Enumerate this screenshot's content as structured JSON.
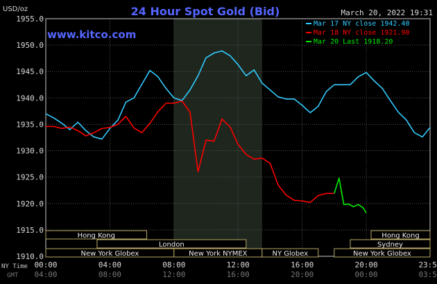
{
  "chart_data": {
    "type": "line",
    "title": "24 Hour Spot Gold (Bid)",
    "currency_label": "USD/oz",
    "timestamp": "March 20, 2022 19:31",
    "watermark": "www.kitco.com",
    "ylim": [
      1910,
      1955
    ],
    "yticks": [
      "1955.0",
      "1950.0",
      "1945.0",
      "1940.0",
      "1935.0",
      "1930.0",
      "1925.0",
      "1920.0",
      "1915.0",
      "1910.0"
    ],
    "x_hours": [
      0,
      4,
      8,
      12,
      16,
      20,
      23.98
    ],
    "xticks_ny": [
      "00:00",
      "04:00",
      "08:00",
      "12:00",
      "16:00",
      "20:00",
      "23:59"
    ],
    "xticks_gmt": [
      "04:00",
      "08:00",
      "12:00",
      "16:00",
      "20:00",
      "00:00",
      "03:59"
    ],
    "x_row_label_ny": "NY Time",
    "x_row_label_gmt": "GMT",
    "highlight_hours": [
      8,
      13.5
    ],
    "sessions": [
      {
        "label": "Hong Kong",
        "start": -2,
        "end": 6.3,
        "row": 0
      },
      {
        "label": "London",
        "start": 3.2,
        "end": 12.5,
        "row": 1
      },
      {
        "label": "New York Globex",
        "start": 0,
        "end": 8,
        "row": 2
      },
      {
        "label": "New York NYMEX",
        "start": 8,
        "end": 13.5,
        "row": 2
      },
      {
        "label": "NY Globex",
        "start": 13.5,
        "end": 17,
        "row": 2
      },
      {
        "label": "Hong Kong",
        "start": 20.3,
        "end": 26,
        "row": 0
      },
      {
        "label": "Sydney",
        "start": 19,
        "end": 26,
        "row": 1
      },
      {
        "label": "New York Globex",
        "start": 18,
        "end": 26,
        "row": 2
      }
    ],
    "series": [
      {
        "name": "Mar 17 NY close 1942.40",
        "color": "#33CCFF",
        "x": [
          0,
          0.5,
          1,
          1.5,
          2,
          2.5,
          3,
          3.5,
          4,
          4.5,
          5,
          5.5,
          6,
          6.5,
          7,
          7.5,
          8,
          8.5,
          9,
          9.5,
          10,
          10.5,
          11,
          11.5,
          12,
          12.5,
          13,
          13.5,
          14,
          14.5,
          15,
          15.5,
          16,
          16.5,
          17,
          17.5,
          18,
          18.5,
          19,
          19.5,
          20,
          20.5,
          21,
          21.5,
          22,
          22.5,
          23,
          23.5,
          23.98
        ],
        "y": [
          1937.0,
          1936.2,
          1935.2,
          1934.0,
          1935.4,
          1933.8,
          1932.6,
          1932.2,
          1934.2,
          1935.8,
          1939.2,
          1940.0,
          1942.6,
          1945.2,
          1944.0,
          1941.8,
          1940.0,
          1939.5,
          1941.5,
          1944.2,
          1947.6,
          1948.5,
          1948.9,
          1948.0,
          1946.3,
          1944.2,
          1945.3,
          1942.8,
          1941.5,
          1940.2,
          1939.8,
          1939.8,
          1938.6,
          1937.2,
          1938.4,
          1941.2,
          1942.5,
          1942.5,
          1942.5,
          1944.0,
          1944.8,
          1943.2,
          1941.8,
          1939.5,
          1937.3,
          1935.8,
          1933.4,
          1932.6,
          1934.4
        ]
      },
      {
        "name": "Mar 18 NY close 1921.90",
        "color": "#FF0000",
        "x": [
          0,
          0.5,
          1,
          1.5,
          2,
          2.5,
          3,
          3.5,
          4,
          4.5,
          5,
          5.5,
          6,
          6.5,
          7,
          7.5,
          8,
          8.5,
          9,
          9.5,
          10,
          10.5,
          11,
          11.5,
          12,
          12.5,
          13,
          13.5,
          14,
          14.5,
          15,
          15.5,
          16,
          16.5,
          17,
          17.5,
          18
        ],
        "y": [
          1934.6,
          1934.6,
          1934.2,
          1934.5,
          1933.8,
          1932.8,
          1933.4,
          1934.2,
          1934.4,
          1935.0,
          1936.5,
          1934.3,
          1933.4,
          1935.2,
          1937.4,
          1939.0,
          1939.0,
          1939.4,
          1937.3,
          1926.0,
          1932.0,
          1931.8,
          1936.0,
          1934.5,
          1931.2,
          1929.3,
          1928.4,
          1928.6,
          1927.6,
          1923.5,
          1921.6,
          1920.6,
          1920.5,
          1920.2,
          1921.5,
          1921.9,
          1921.9
        ]
      },
      {
        "name": "Mar 20 Last 1918.20",
        "color": "#00EE00",
        "x": [
          18,
          18.3,
          18.6,
          18.9,
          19.2,
          19.5,
          19.8,
          20.0
        ],
        "y": [
          1921.9,
          1924.8,
          1919.8,
          1919.9,
          1919.4,
          1919.8,
          1919.2,
          1918.2
        ]
      }
    ]
  }
}
